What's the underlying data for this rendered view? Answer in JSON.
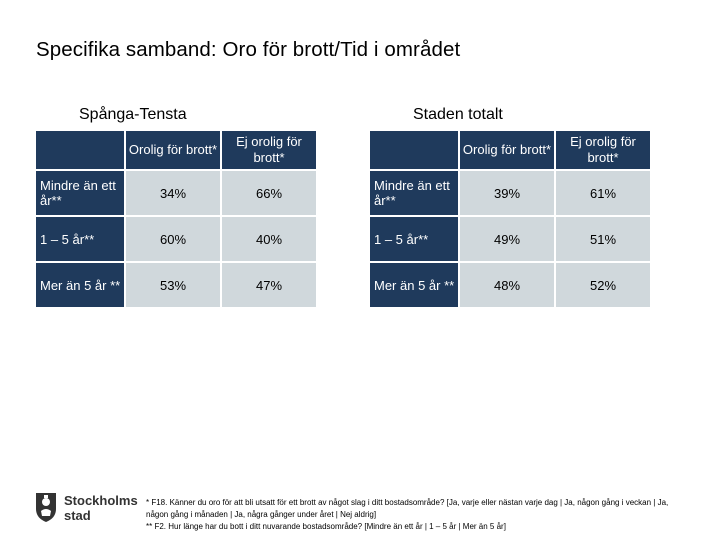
{
  "title": "Specifika samband: Oro för brott/Tid i området",
  "groups": [
    {
      "heading": "Spånga-Tensta",
      "columns": [
        "Orolig för brott*",
        "Ej orolig för brott*"
      ],
      "rows": [
        {
          "label": "Mindre än ett år**",
          "values": [
            "34%",
            "66%"
          ]
        },
        {
          "label": "1 – 5 år**",
          "values": [
            "60%",
            "40%"
          ]
        },
        {
          "label": "Mer än 5 år **",
          "values": [
            "53%",
            "47%"
          ]
        }
      ]
    },
    {
      "heading": "Staden totalt",
      "columns": [
        "Orolig för brott*",
        "Ej orolig för brott*"
      ],
      "rows": [
        {
          "label": "Mindre än ett år**",
          "values": [
            "39%",
            "61%"
          ]
        },
        {
          "label": "1 – 5 år**",
          "values": [
            "49%",
            "51%"
          ]
        },
        {
          "label": "Mer än 5 år **",
          "values": [
            "48%",
            "52%"
          ]
        }
      ]
    }
  ],
  "logo": {
    "line1": "Stockholms",
    "line2": "stad",
    "icon": "stockholm-crest-icon"
  },
  "footnotes": [
    "* F18. Känner du oro för att bli utsatt för ett brott av något slag i ditt bostadsområde? [Ja, varje eller nästan varje dag | Ja, någon gång i veckan | Ja, någon gång i månaden | Ja, några gånger under året | Nej aldrig]",
    "** F2. Hur länge har du bott i ditt nuvarande bostadsområde? [Mindre än ett år | 1 – 5 år | Mer än 5 år]"
  ],
  "colors": {
    "header_bg": "#1f3a5c",
    "cell_bg": "#d0d8dc",
    "header_text": "#ffffff"
  }
}
